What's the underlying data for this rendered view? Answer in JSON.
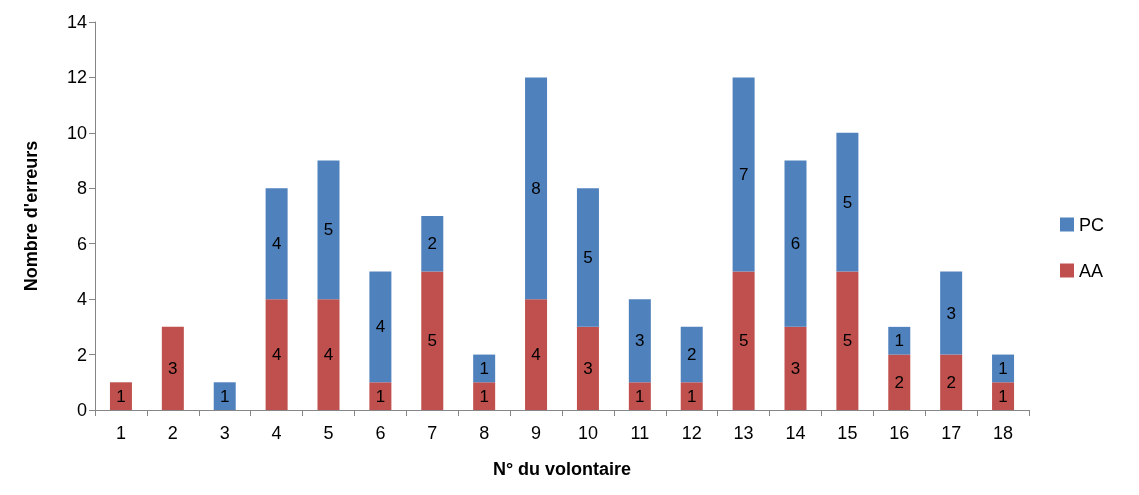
{
  "chart_data": {
    "type": "bar",
    "stacked": true,
    "xlabel": "N° du volontaire",
    "ylabel": "Nombre d'erreurs",
    "categories": [
      "1",
      "2",
      "3",
      "4",
      "5",
      "6",
      "7",
      "8",
      "9",
      "10",
      "11",
      "12",
      "13",
      "14",
      "15",
      "16",
      "17",
      "18"
    ],
    "series": [
      {
        "name": "AA",
        "color": "#c0504d",
        "values": [
          1,
          3,
          null,
          4,
          4,
          1,
          5,
          1,
          4,
          3,
          1,
          1,
          5,
          3,
          5,
          2,
          2,
          1
        ]
      },
      {
        "name": "PC",
        "color": "#4f81bd",
        "values": [
          null,
          null,
          1,
          4,
          5,
          4,
          2,
          1,
          8,
          5,
          3,
          2,
          7,
          6,
          5,
          1,
          3,
          1
        ]
      }
    ],
    "ylim": [
      0,
      14
    ],
    "yticks": [
      0,
      2,
      4,
      6,
      8,
      10,
      12,
      14
    ],
    "grid": false,
    "legend": "right",
    "data_labels": true
  }
}
